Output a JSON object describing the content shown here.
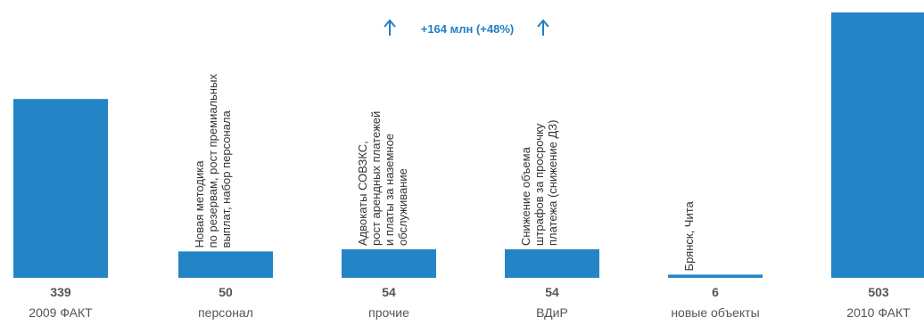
{
  "chart_data": {
    "type": "bar",
    "subtype": "waterfall",
    "categories": [
      "2009 ФАКТ",
      "персонал",
      "прочие",
      "ВДиР",
      "новые объекты",
      "2010 ФАКТ"
    ],
    "values": [
      339,
      50,
      54,
      54,
      6,
      503
    ],
    "value_labels": [
      "339",
      "50",
      "54",
      "54",
      "6",
      "503"
    ],
    "annotations": [
      "",
      "Новая методика\nпо резервам, рост премиальных\nвыплат, набор персонала",
      "Адвокаты СОВЗКС,\nрост арендных платежей\nи платы за наземное\nобслуживание",
      "Снижение объема\nштрафов за просрочку\nплатежа (снижение ДЗ)",
      "Брянск, Чита",
      ""
    ],
    "delta_label": "+164 млн (+48%)",
    "colors": {
      "bar": "#2384c6",
      "accent": "#1f7fc4",
      "text": "#555555"
    }
  }
}
